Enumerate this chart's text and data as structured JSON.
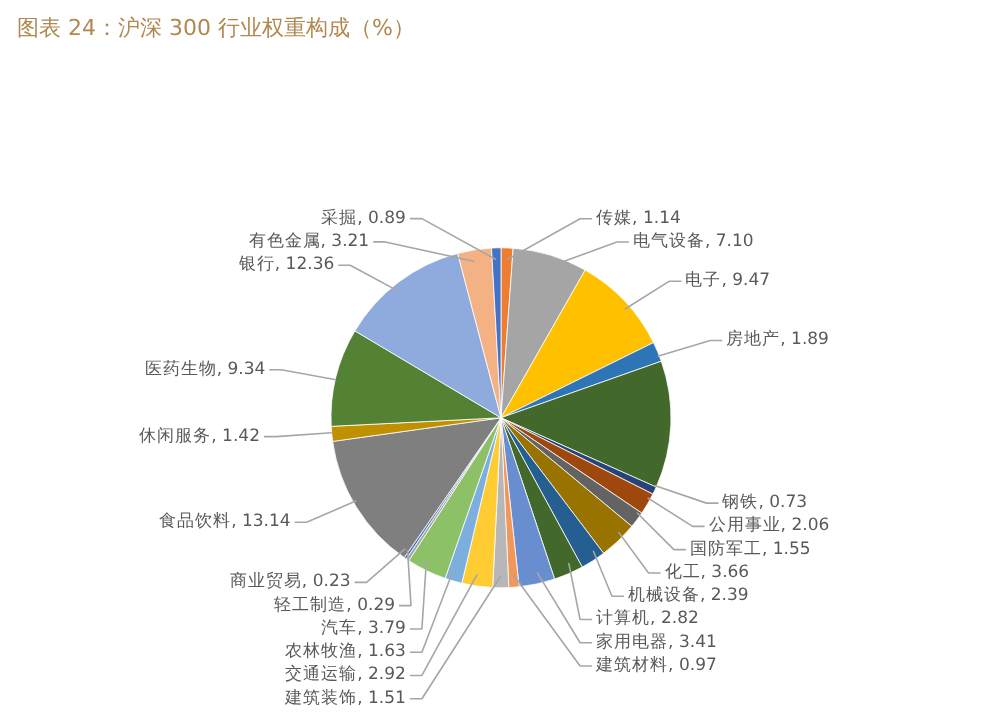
{
  "chart_data": {
    "type": "pie",
    "title": "图表 24：沪深 300 行业权重构成（%）",
    "categories": [
      "传媒",
      "电气设备",
      "电子",
      "房地产",
      null,
      "钢铁",
      "公用事业",
      "国防军工",
      "化工",
      "机械设备",
      "计算机",
      "家用电器",
      "建筑材料",
      "建筑装饰",
      "交通运输",
      "农林牧渔",
      "汽车",
      "轻工制造",
      "商业贸易",
      "食品饮料",
      "休闲服务",
      "医药生物",
      "银行",
      "有色金属",
      "采掘"
    ],
    "values": [
      1.14,
      7.1,
      9.47,
      1.89,
      12.08,
      0.73,
      2.06,
      1.55,
      3.66,
      2.39,
      2.82,
      3.41,
      0.97,
      1.51,
      2.92,
      1.63,
      3.79,
      0.29,
      0.23,
      13.14,
      1.42,
      9.34,
      12.36,
      3.21,
      0.89
    ],
    "value_labels": [
      "1.14",
      "7.10",
      "9.47",
      "1.89",
      null,
      "0.73",
      "2.06",
      "1.55",
      "3.66",
      "2.39",
      "2.82",
      "3.41",
      "0.97",
      "1.51",
      "2.92",
      "1.63",
      "3.79",
      "0.29",
      "0.23",
      "13.14",
      "1.42",
      "9.34",
      "12.36",
      "3.21",
      "0.89"
    ],
    "colors": [
      "#ed7d31",
      "#a5a5a5",
      "#ffc000",
      "#2e75b6",
      "#43682b",
      "#264478",
      "#9e480e",
      "#636363",
      "#997300",
      "#255e91",
      "#43682b",
      "#698ed0",
      "#f1975a",
      "#b7b7b7",
      "#ffcd33",
      "#7cafdd",
      "#8cc168",
      "#a5a5a5",
      "#4472c4",
      "#7f7f7f",
      "#bf9000",
      "#548235",
      "#8faadc",
      "#f4b183",
      "#4472c4"
    ]
  }
}
